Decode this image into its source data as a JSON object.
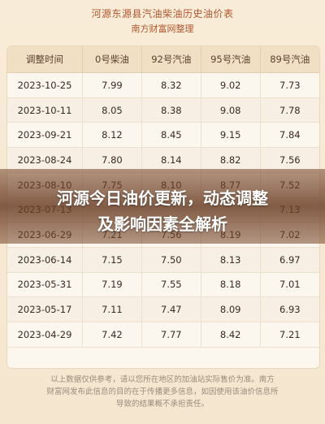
{
  "header": {
    "title": "河源东源县汽油柴油历史油价表",
    "subtitle": "南方财富网整理"
  },
  "table": {
    "columns": [
      "调整时间",
      "0号柴油",
      "92号汽油",
      "95号汽油",
      "89号汽油"
    ],
    "rows": [
      [
        "2023-10-25",
        "7.99",
        "8.32",
        "9.02",
        "7.73"
      ],
      [
        "2023-10-11",
        "8.05",
        "8.38",
        "9.08",
        "7.78"
      ],
      [
        "2023-09-21",
        "8.12",
        "8.45",
        "9.15",
        "7.84"
      ],
      [
        "2023-08-24",
        "7.80",
        "8.14",
        "8.82",
        "7.56"
      ],
      [
        "2023-08-10",
        "7.75",
        "8.10",
        "8.77",
        "7.52"
      ],
      [
        "2023-07-13",
        "",
        "",
        "",
        "7.13"
      ],
      [
        "2023-06-29",
        "7.21",
        "7.56",
        "8.19",
        "7.02"
      ],
      [
        "2023-06-14",
        "7.15",
        "7.50",
        "8.13",
        "6.97"
      ],
      [
        "2023-05-31",
        "7.19",
        "7.55",
        "8.18",
        "7.01"
      ],
      [
        "2023-05-17",
        "7.11",
        "7.47",
        "8.09",
        "6.93"
      ],
      [
        "2023-04-29",
        "7.42",
        "7.77",
        "8.42",
        "7.21"
      ]
    ]
  },
  "banner": {
    "line1": "河源今日油价更新，动态调整",
    "line2": "及影响因素全解析"
  },
  "footer": {
    "line1": "以上数据仅供参考，请以您所在地区的加油站实际售价为准。南方",
    "line2": "财富网发布此信息的目的在于传播更多信息，如因使用该油价信息所",
    "line3": "导致的结果概不承担责任。"
  }
}
